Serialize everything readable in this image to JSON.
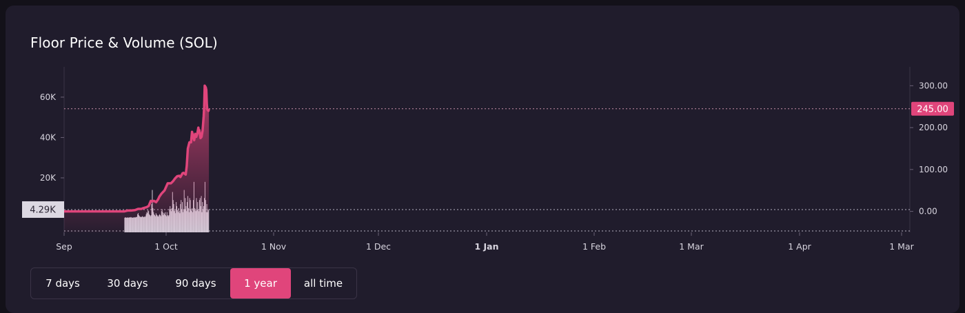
{
  "colors": {
    "background": "#201c2c",
    "accent": "#e0457b",
    "volume_bar": "#d4cfdb",
    "crosshair_label_bg": "#dcd8e2"
  },
  "chart_title": "Floor Price & Volume (SOL)",
  "tabs": [
    {
      "label": "7 days",
      "active": false
    },
    {
      "label": "30 days",
      "active": false
    },
    {
      "label": "90 days",
      "active": false
    },
    {
      "label": "1 year",
      "active": true
    },
    {
      "label": "all time",
      "active": false
    }
  ],
  "chart_data": {
    "type": "line",
    "title": "Floor Price & Volume (SOL)",
    "x_ticks": [
      "Sep",
      "1 Oct",
      "1 Nov",
      "1 Dec",
      "1 Jan",
      "1 Feb",
      "1 Mar",
      "1 Apr",
      "1 Mar"
    ],
    "left_axis": {
      "ticks": [
        "20K",
        "40K",
        "60K"
      ],
      "range": [
        -7000,
        75000
      ]
    },
    "right_axis": {
      "ticks": [
        "0.00",
        "100.00",
        "200.00",
        "300.00"
      ],
      "range": [
        -50,
        345
      ]
    },
    "current_price_label": "245.00",
    "crosshair_volume_label": "4.29K",
    "series": [
      {
        "kind": "price",
        "axis": "right",
        "points": [
          [
            0,
            0
          ],
          [
            0.62,
            0
          ],
          [
            0.65,
            2
          ],
          [
            0.68,
            2
          ],
          [
            0.72,
            3
          ],
          [
            0.75,
            6
          ],
          [
            0.78,
            6
          ],
          [
            0.8,
            8
          ],
          [
            0.83,
            10
          ],
          [
            0.85,
            13
          ],
          [
            0.87,
            25
          ],
          [
            0.88,
            24
          ],
          [
            0.9,
            25
          ],
          [
            0.92,
            22
          ],
          [
            0.94,
            29
          ],
          [
            0.95,
            35
          ],
          [
            0.97,
            42
          ],
          [
            1.0,
            50
          ],
          [
            1.03,
            67
          ],
          [
            1.06,
            67
          ],
          [
            1.08,
            72
          ],
          [
            1.1,
            79
          ],
          [
            1.12,
            84
          ],
          [
            1.14,
            85
          ],
          [
            1.15,
            82
          ],
          [
            1.17,
            91
          ],
          [
            1.18,
            92
          ],
          [
            1.2,
            88
          ],
          [
            1.21,
            108
          ],
          [
            1.22,
            150
          ],
          [
            1.235,
            165
          ],
          [
            1.25,
            165
          ],
          [
            1.26,
            190
          ],
          [
            1.27,
            180
          ],
          [
            1.28,
            170
          ],
          [
            1.29,
            185
          ],
          [
            1.3,
            178
          ],
          [
            1.31,
            186
          ],
          [
            1.32,
            200
          ],
          [
            1.325,
            188
          ],
          [
            1.33,
            194
          ],
          [
            1.34,
            175
          ],
          [
            1.35,
            178
          ],
          [
            1.36,
            193
          ],
          [
            1.37,
            228
          ],
          [
            1.375,
            250
          ],
          [
            1.38,
            300
          ],
          [
            1.39,
            296
          ],
          [
            1.395,
            290
          ],
          [
            1.4,
            255
          ],
          [
            1.405,
            243
          ],
          [
            1.415,
            240
          ],
          [
            1.42,
            245
          ]
        ]
      },
      {
        "kind": "volume",
        "axis": "left",
        "start": 0.62,
        "end": 1.42,
        "values": [
          200,
          500,
          300,
          200,
          400,
          300,
          200,
          500,
          300,
          400,
          600,
          300,
          400,
          200,
          300,
          500,
          400,
          300,
          600,
          500,
          700,
          2000,
          2500,
          1500,
          1000,
          800,
          600,
          500,
          800,
          1000,
          700,
          500,
          800,
          600,
          1000,
          2000,
          3000,
          2500,
          4000,
          3500,
          2000,
          1500,
          1000,
          1500,
          7000,
          14000,
          5000,
          3000,
          2000,
          1500,
          1000,
          2500,
          1800,
          1500,
          1000,
          800,
          1500,
          2000,
          1500,
          1000,
          3500,
          4500,
          3000,
          1500,
          2500,
          2000,
          3000,
          1500,
          1000,
          3000,
          1500,
          1000,
          1500,
          4500,
          6000,
          4500,
          3500,
          5000,
          13000,
          9000,
          7000,
          3500,
          4000,
          2500,
          8000,
          6000,
          4000,
          3000,
          5000,
          3500,
          2500,
          7000,
          9000,
          4500,
          8000,
          3000,
          4500,
          14000,
          4500,
          10000,
          6000,
          3500,
          8000,
          11000,
          5000,
          3000,
          10000,
          9000,
          4500,
          3500,
          5000,
          3000,
          9000,
          18000,
          5000,
          4000,
          3500,
          10000,
          4000,
          8000,
          4500,
          3500,
          9000,
          10000,
          6000,
          11000,
          3000,
          8000,
          4500,
          6000,
          10000,
          18000,
          9000,
          3000,
          7000,
          3000,
          4500,
          4000
        ]
      }
    ]
  }
}
